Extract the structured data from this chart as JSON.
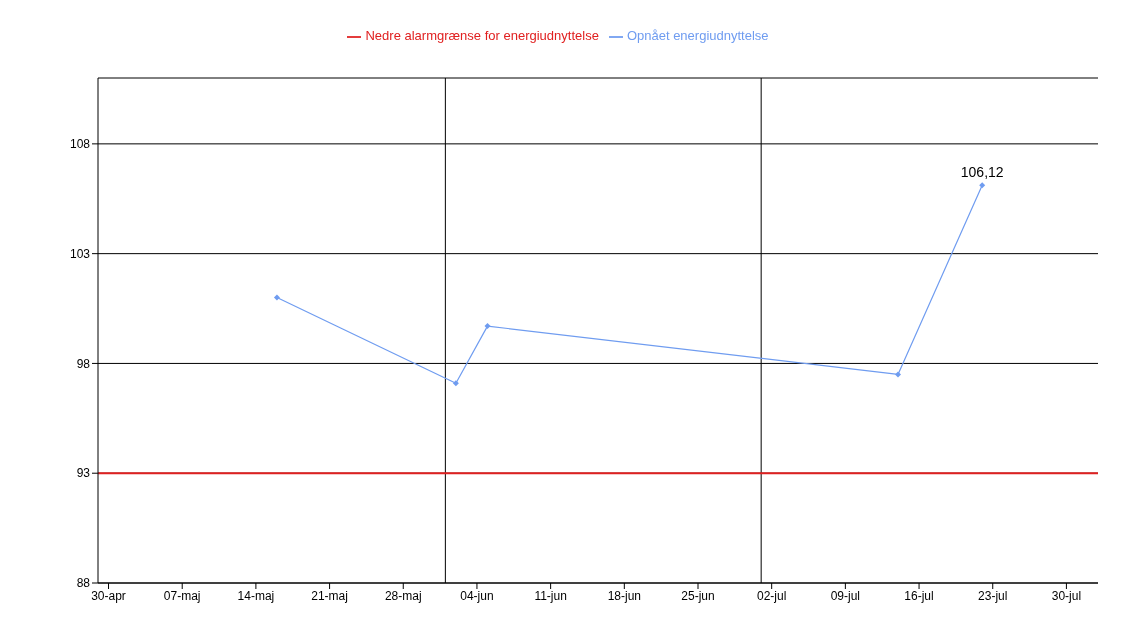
{
  "chart_data": {
    "type": "line",
    "series": [
      {
        "name": "Opnået energiudnyttelse",
        "color": "#6f9cf0",
        "x": [
          "--05-16",
          "--06-02",
          "--06-05",
          "--07-14",
          "--07-22"
        ],
        "values": [
          101,
          97.1,
          99.7,
          97.5,
          106.12
        ],
        "value_labels": [
          null,
          null,
          null,
          null,
          "106,12"
        ],
        "marker": "diamond"
      },
      {
        "name": "Nedre alarmgrænse for energiudnyttelse",
        "color": "#e02020",
        "x": [
          "--04-29",
          "--08-02"
        ],
        "values": [
          93,
          93
        ],
        "marker": "none"
      }
    ],
    "xlim": [
      "--04-29",
      "--08-02"
    ],
    "xticks": [
      {
        "value": "--04-30",
        "label": "30-apr"
      },
      {
        "value": "--05-07",
        "label": "07-maj"
      },
      {
        "value": "--05-14",
        "label": "14-maj"
      },
      {
        "value": "--05-21",
        "label": "21-maj"
      },
      {
        "value": "--05-28",
        "label": "28-maj"
      },
      {
        "value": "--06-04",
        "label": "04-jun"
      },
      {
        "value": "--06-11",
        "label": "11-jun"
      },
      {
        "value": "--06-18",
        "label": "18-jun"
      },
      {
        "value": "--06-25",
        "label": "25-jun"
      },
      {
        "value": "--07-02",
        "label": "02-jul"
      },
      {
        "value": "--07-09",
        "label": "09-jul"
      },
      {
        "value": "--07-16",
        "label": "16-jul"
      },
      {
        "value": "--07-23",
        "label": "23-jul"
      },
      {
        "value": "--07-30",
        "label": "30-jul"
      }
    ],
    "ylim": [
      88,
      111
    ],
    "yticks": [
      88,
      93,
      98,
      103,
      108
    ],
    "grid": "y",
    "ref_lines": [
      {
        "axis": "x",
        "value": "--06-01",
        "color": "#000000"
      },
      {
        "axis": "x",
        "value": "--07-01",
        "color": "#000000"
      }
    ],
    "legend": "top",
    "line_style": "solid"
  }
}
